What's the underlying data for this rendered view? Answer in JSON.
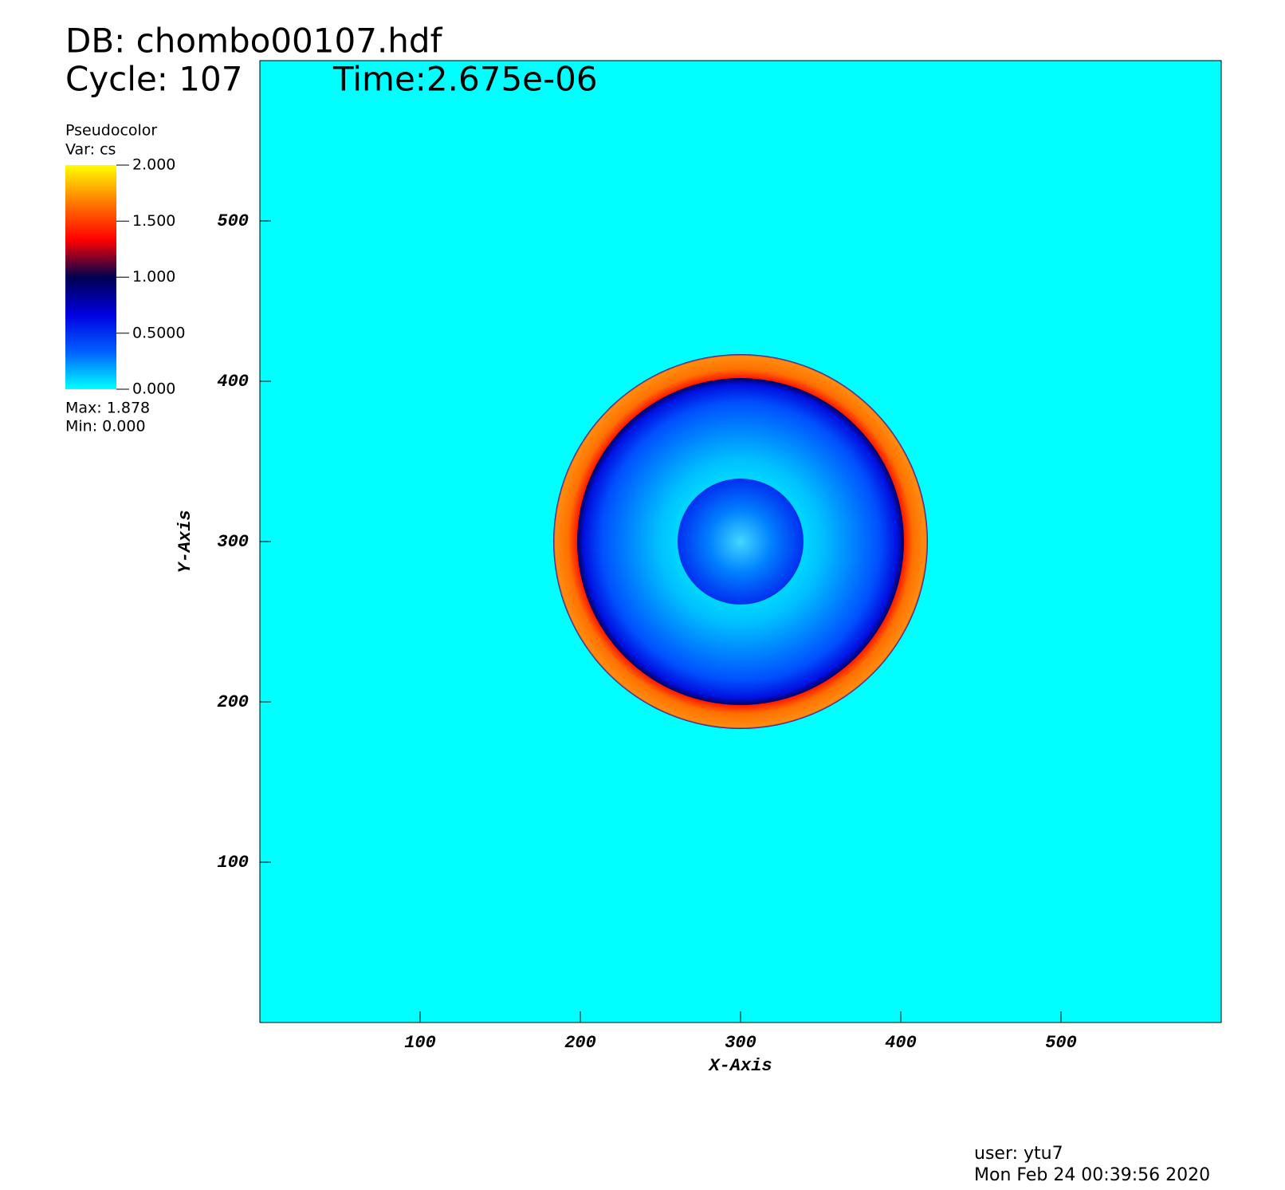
{
  "chart_data": {
    "type": "pseudocolor",
    "db_label": "DB: chombo00107.hdf",
    "cycle_label": "Cycle: 107",
    "time_label": "Time:2.675e-06",
    "legend_title": "Pseudocolor",
    "legend_var": "Var: cs",
    "max_label": "Max:  1.878",
    "min_label": "Min:  0.000",
    "x_label": "X-Axis",
    "y_label": "Y-Axis",
    "xlim": [
      0,
      600
    ],
    "ylim": [
      0,
      600
    ],
    "xticks": [
      100,
      200,
      300,
      400,
      500
    ],
    "yticks": [
      100,
      200,
      300,
      400,
      500
    ],
    "colorbar_lim": [
      0,
      2
    ],
    "colorbar_ticks": [
      {
        "value": 0,
        "label": "0.000"
      },
      {
        "value": 0.5,
        "label": "0.5000"
      },
      {
        "value": 1,
        "label": "1.000"
      },
      {
        "value": 1.5,
        "label": "1.500"
      },
      {
        "value": 2,
        "label": "2.000"
      }
    ],
    "colormap": [
      "#00ffff",
      "#0060ff",
      "#0000e0",
      "#000050",
      "#ff0000",
      "#ff7a00",
      "#ffff00"
    ],
    "background_color": "#00ffff",
    "user_label": "user: ytu7",
    "date_label": "Mon Feb 24 00:39:56 2020"
  }
}
